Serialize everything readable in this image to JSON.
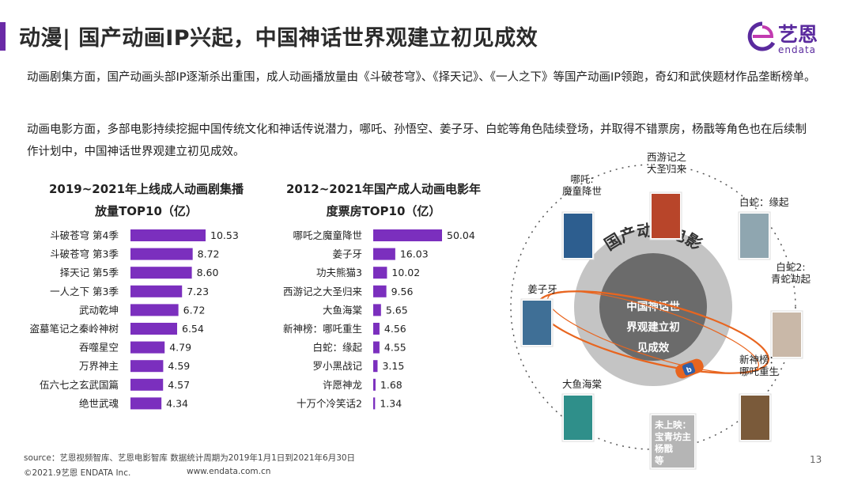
{
  "header": {
    "title": "动漫| 国产动画IP兴起，中国神话世界观建立初见成效",
    "logo_cn": "艺恩",
    "logo_en": "endata",
    "accent_color": "#6a2aa6"
  },
  "paragraphs": {
    "p1": "动画剧集方面，国产动画头部IP逐渐杀出重围，成人动画播放量由《斗破苍穹》、《择天记》、《一人之下》等国产动画IP领跑，奇幻和武侠题材作品垄断榜单。",
    "p2": "动画电影方面，多部电影持续挖掘中国传统文化和神话传说潜力，哪吒、孙悟空、姜子牙、白蛇等角色陆续登场，并取得不错票房，杨戬等角色也在后续制作计划中，中国神话世界观建立初见成效。"
  },
  "chart_titles": {
    "left_line1": "2019~2021年上线成人动画剧集播",
    "left_line2": "放量TOP10（亿）",
    "right_line1": "2012~2021年国产成人动画电影年",
    "right_line2": "度票房TOP10（亿）"
  },
  "chart_data": [
    {
      "type": "bar",
      "orientation": "horizontal",
      "title": "2019~2021年上线成人动画剧集播放量TOP10（亿）",
      "categories": [
        "斗破苍穹 第4季",
        "斗破苍穹 第3季",
        "择天记 第5季",
        "一人之下 第3季",
        "武动乾坤",
        "盗墓笔记之秦岭神树",
        "吞噬星空",
        "万界神主",
        "伍六七之玄武国篇",
        "绝世武魂"
      ],
      "values": [
        10.53,
        8.72,
        8.6,
        7.23,
        6.72,
        6.54,
        4.79,
        4.59,
        4.57,
        4.34
      ],
      "labels": [
        "10.53",
        "8.72",
        "8.60",
        "7.23",
        "6.72",
        "6.54",
        "4.79",
        "4.59",
        "4.57",
        "4.34"
      ],
      "color": "#7b2fbe"
    },
    {
      "type": "bar",
      "orientation": "horizontal",
      "title": "2012~2021年国产成人动画电影年度票房TOP10（亿）",
      "categories": [
        "哪吒之魔童降世",
        "姜子牙",
        "功夫熊猫3",
        "西游记之大圣归来",
        "大鱼海棠",
        "新神榜：哪吒重生",
        "白蛇：缘起",
        "罗小黑战记",
        "许愿神龙",
        "十万个冷笑话2"
      ],
      "values": [
        50.04,
        16.03,
        10.02,
        9.56,
        5.65,
        4.56,
        4.55,
        3.15,
        1.68,
        1.34
      ],
      "labels": [
        "50.04",
        "16.03",
        "10.02",
        "9.56",
        "5.65",
        "4.56",
        "4.55",
        "3.15",
        "1.68",
        "1.34"
      ],
      "color": "#7b2fbe"
    }
  ],
  "diagram": {
    "ring_title": "国产动画电影",
    "center_line1": "中国神话世",
    "center_line2": "界观建立初",
    "center_line3": "见成效",
    "films": [
      {
        "line1": "西游记之",
        "line2": "大圣归来",
        "poster": "#b8452a"
      },
      {
        "line1": "白蛇：缘起",
        "line2": "",
        "poster": "#8fa6b0"
      },
      {
        "line1": "白蛇2:",
        "line2": "青蛇劫起",
        "poster": "#c9b8a8"
      },
      {
        "line1": "新神榜：",
        "line2": "哪吒重生",
        "poster": "#7a5a3a"
      },
      {
        "line1": "未上映：",
        "line2": "宝青坊主",
        "line3": "杨戬",
        "line4": "等",
        "poster": "#b5b5b5"
      },
      {
        "line1": "大鱼海棠",
        "line2": "",
        "poster": "#2f8f8a"
      },
      {
        "line1": "姜子牙",
        "line2": "",
        "poster": "#3f6f96"
      },
      {
        "line1": "哪吒:",
        "line2": "魔童降世",
        "poster": "#2d5e8f"
      }
    ],
    "ring_color": "#6b6b6b",
    "disc_color": "#c4c4c4",
    "orbit_color": "#e8651f"
  },
  "footer": {
    "source": "source：艺恩视频智库、艺恩电影智库     数据统计周期为2019年1月1日到2021年6月30日",
    "copyright": "©2021.9艺恩 ENDATA Inc.",
    "website": "www.endata.com.cn",
    "page_number": "13"
  }
}
